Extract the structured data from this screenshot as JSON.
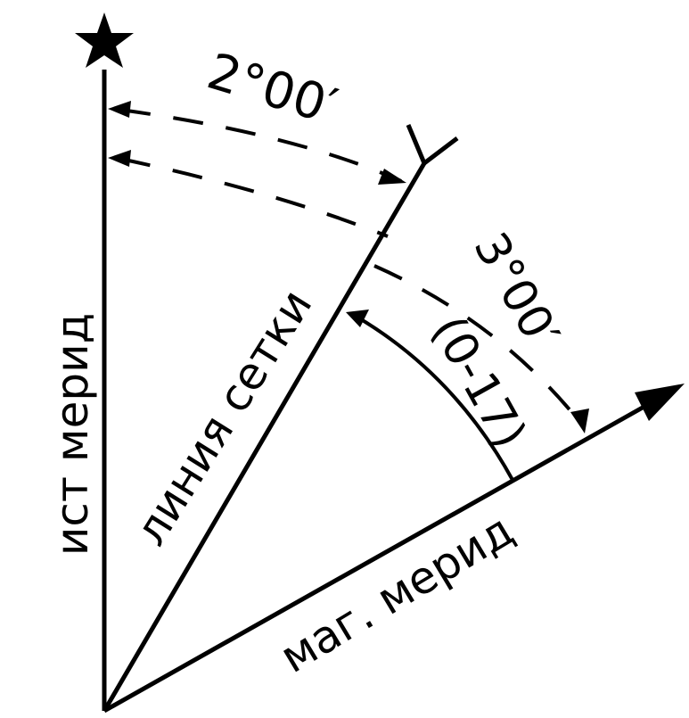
{
  "labels": {
    "true_meridian": "ист мерид",
    "grid_line": "линия сетки",
    "magnetic_meridian": "маг. мерид",
    "grid_convergence": "2°00′",
    "grid_magnetic_angle": "3°00′",
    "grid_magnetic_angle_mils": "(0-17)"
  },
  "icons": {
    "star": "star-icon"
  },
  "colors": {
    "ink": "#000000",
    "background": "#ffffff"
  }
}
